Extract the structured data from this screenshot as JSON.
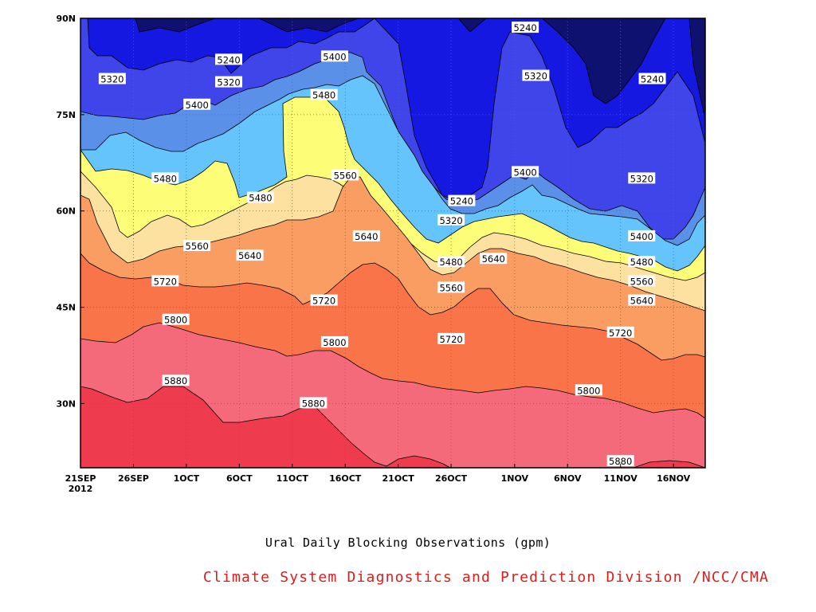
{
  "chart_data": {
    "type": "contour",
    "title": "Ural Daily Blocking Observations (gpm)",
    "subtitle": "Climate System Diagnostics and Prediction Division /NCC/CMA",
    "x_ticks": [
      "21SEP\n2012",
      "26SEP",
      "1OCT",
      "6OCT",
      "11OCT",
      "16OCT",
      "21OCT",
      "26OCT",
      "1NOV",
      "6NOV",
      "11NOV",
      "16NOV"
    ],
    "x_range": [
      "2012-09-21",
      "2012-11-19"
    ],
    "y_ticks": [
      "30N",
      "45N",
      "60N",
      "75N",
      "90N"
    ],
    "y_values": [
      30,
      45,
      60,
      75,
      90
    ],
    "ylim": [
      20,
      90
    ],
    "grid": true,
    "contour_levels": [
      5240,
      5320,
      5400,
      5480,
      5560,
      5640,
      5720,
      5800,
      5880
    ],
    "level_colors": [
      "#0e1170",
      "#1418e0",
      "#3f45e8",
      "#5a60ef",
      "#5a90e8",
      "#64c4fb",
      "#fdfd78",
      "#fde1a0",
      "#f99d62",
      "#f97448",
      "#f46a7a",
      "#ef3b4e"
    ],
    "contour_labels": [
      {
        "text": "5240",
        "date": "2012-11-02",
        "lat": 88.5
      },
      {
        "text": "5320",
        "date": "2012-09-24",
        "lat": 80.5
      },
      {
        "text": "5240",
        "date": "2012-10-05",
        "lat": 83.5
      },
      {
        "text": "5320",
        "date": "2012-10-05",
        "lat": 80.0
      },
      {
        "text": "5400",
        "date": "2012-10-15",
        "lat": 84.0
      },
      {
        "text": "5400",
        "date": "2012-10-02",
        "lat": 76.5
      },
      {
        "text": "5480",
        "date": "2012-10-14",
        "lat": 78.0
      },
      {
        "text": "5320",
        "date": "2012-11-03",
        "lat": 81.0
      },
      {
        "text": "5240",
        "date": "2012-11-14",
        "lat": 80.5
      },
      {
        "text": "5480",
        "date": "2012-09-29",
        "lat": 65.0
      },
      {
        "text": "5560",
        "date": "2012-10-16",
        "lat": 65.5
      },
      {
        "text": "5480",
        "date": "2012-10-08",
        "lat": 62.0
      },
      {
        "text": "5240",
        "date": "2012-10-27",
        "lat": 61.5
      },
      {
        "text": "5320",
        "date": "2012-10-26",
        "lat": 58.5
      },
      {
        "text": "5400",
        "date": "2012-11-02",
        "lat": 66.0
      },
      {
        "text": "5320",
        "date": "2012-11-13",
        "lat": 65.0
      },
      {
        "text": "5560",
        "date": "2012-10-02",
        "lat": 54.5
      },
      {
        "text": "5640",
        "date": "2012-10-07",
        "lat": 53.0
      },
      {
        "text": "5640",
        "date": "2012-10-18",
        "lat": 56.0
      },
      {
        "text": "5480",
        "date": "2012-10-26",
        "lat": 52.0
      },
      {
        "text": "5640",
        "date": "2012-10-30",
        "lat": 52.5
      },
      {
        "text": "5400",
        "date": "2012-11-13",
        "lat": 56.0
      },
      {
        "text": "5480",
        "date": "2012-11-13",
        "lat": 52.0
      },
      {
        "text": "5560",
        "date": "2012-10-26",
        "lat": 48.0
      },
      {
        "text": "5560",
        "date": "2012-11-13",
        "lat": 49.0
      },
      {
        "text": "5720",
        "date": "2012-09-29",
        "lat": 49.0
      },
      {
        "text": "5720",
        "date": "2012-10-14",
        "lat": 46.0
      },
      {
        "text": "5640",
        "date": "2012-11-13",
        "lat": 46.0
      },
      {
        "text": "5800",
        "date": "2012-09-30",
        "lat": 43.0
      },
      {
        "text": "5720",
        "date": "2012-11-11",
        "lat": 41.0
      },
      {
        "text": "5720",
        "date": "2012-10-26",
        "lat": 40.0
      },
      {
        "text": "5800",
        "date": "2012-10-15",
        "lat": 39.5
      },
      {
        "text": "5880",
        "date": "2012-09-30",
        "lat": 33.5
      },
      {
        "text": "5880",
        "date": "2012-10-13",
        "lat": 30.0
      },
      {
        "text": "5800",
        "date": "2012-11-08",
        "lat": 32.0
      },
      {
        "text": "5880",
        "date": "2012-11-11",
        "lat": 21.0
      }
    ]
  }
}
